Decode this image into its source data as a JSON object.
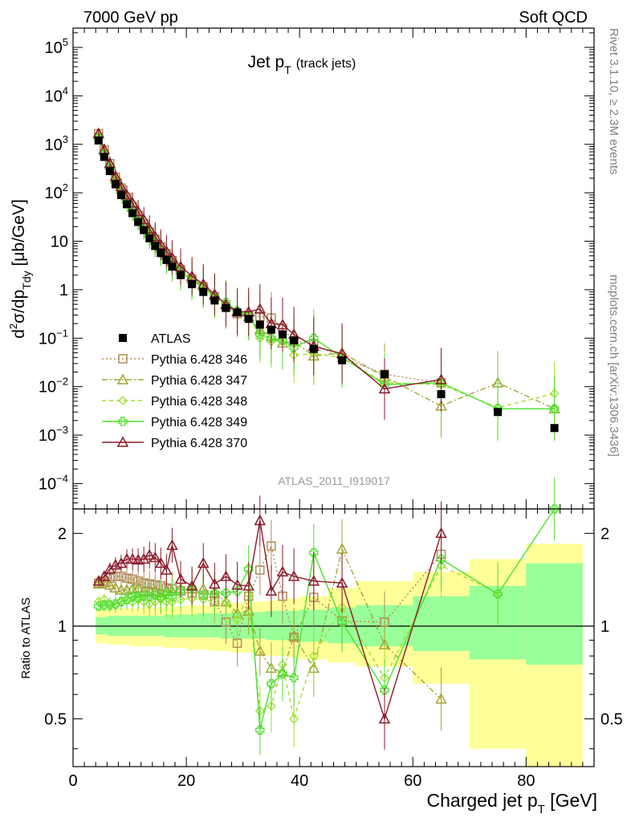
{
  "header": {
    "left": "7000 GeV pp",
    "right": "Soft QCD"
  },
  "side_labels": {
    "top": "Rivet 3.1.10, ≥ 2.3M events",
    "bottom": "mcplots.cern.ch [arXiv:1306.3436]"
  },
  "colors": {
    "ATLAS": "#000000",
    "346": "#b08b5a",
    "347": "#a4a536",
    "348": "#9ee02c",
    "349": "#4be02c",
    "370": "#8b1a2a",
    "band_yellow": "#ffff99",
    "band_green": "#99ff99"
  },
  "chart_data": [
    {
      "type": "scatter",
      "title": "Jet p_T (track jets)",
      "title_main": "Jet p",
      "title_sub": "T",
      "title_note": "(track jets)",
      "ylabel_parts": [
        "d",
        "2",
        "σ/dp",
        "Tdy",
        " [μb/GeV]"
      ],
      "yscale": "log",
      "ylim": [
        3e-05,
        250000.0
      ],
      "xlim": [
        0,
        92
      ],
      "ytick_labels": {
        "100000": [
          "10",
          "5"
        ],
        "10000": [
          "10",
          "4"
        ],
        "1000": [
          "10",
          "3"
        ],
        "100": [
          "10",
          "2"
        ],
        "10": [
          "10",
          ""
        ],
        "1": [
          "1",
          ""
        ],
        "0.1": [
          "10",
          "−1"
        ],
        "0.01": [
          "10",
          "−2"
        ],
        "0.001": [
          "10",
          "−3"
        ],
        "0.0001": [
          "10",
          "−4"
        ]
      },
      "watermark": "ATLAS_2011_I919017",
      "legend_position": "center-left",
      "series": [
        {
          "name": "ATLAS",
          "key": "ATLAS",
          "x": [
            4.5,
            5.5,
            6.5,
            7.5,
            8.5,
            9.5,
            10.5,
            11.5,
            12.5,
            13.5,
            14.5,
            15.5,
            16.5,
            17.5,
            19,
            21,
            23,
            25,
            27,
            29,
            31,
            33,
            35,
            37,
            39,
            42.5,
            47.5,
            55,
            65,
            75,
            85
          ],
          "y": [
            1200,
            550,
            280,
            150,
            90,
            58,
            38,
            25,
            17,
            11.5,
            8,
            5.7,
            4.1,
            3,
            2,
            1.3,
            0.9,
            0.6,
            0.42,
            0.34,
            0.25,
            0.19,
            0.15,
            0.12,
            0.09,
            0.06,
            0.035,
            0.018,
            0.007,
            0.003,
            0.0014
          ]
        },
        {
          "name": "Pythia 6.428 346",
          "key": "346",
          "style": "dotted",
          "marker": "square",
          "x": [
            4.5,
            5.5,
            6.5,
            7.5,
            8.5,
            9.5,
            10.5,
            11.5,
            12.5,
            13.5,
            14.5,
            15.5,
            16.5,
            17.5,
            19,
            21,
            23,
            25,
            27,
            29,
            31,
            33,
            35,
            37,
            39,
            42.5,
            47.5,
            55,
            65
          ],
          "y": [
            1660,
            770,
            400,
            210,
            125,
            80,
            52,
            34,
            23,
            15.5,
            11,
            7.6,
            5.5,
            4,
            2.6,
            1.65,
            1.15,
            0.72,
            0.45,
            0.32,
            0.3,
            0.28,
            0.26,
            0.16,
            0.085,
            0.075,
            0.04,
            0.018,
            0.012
          ]
        },
        {
          "name": "Pythia 6.428 347",
          "key": "347",
          "style": "dashdot",
          "marker": "triangle",
          "x": [
            4.5,
            5.5,
            6.5,
            7.5,
            8.5,
            9.5,
            10.5,
            11.5,
            12.5,
            13.5,
            14.5,
            15.5,
            16.5,
            17.5,
            19,
            21,
            23,
            25,
            27,
            29,
            31,
            33,
            35,
            37,
            39,
            42.5,
            47.5,
            55,
            65,
            75,
            85
          ],
          "y": [
            1640,
            760,
            380,
            200,
            118,
            76,
            50,
            33,
            22,
            15,
            10.5,
            7.3,
            5.3,
            3.9,
            2.6,
            1.7,
            1.2,
            0.76,
            0.5,
            0.37,
            0.28,
            0.15,
            0.11,
            0.08,
            0.085,
            0.043,
            0.05,
            0.016,
            0.004,
            0.012,
            0.0035
          ]
        },
        {
          "name": "Pythia 6.428 348",
          "key": "348",
          "style": "dashed",
          "marker": "diamond",
          "x": [
            4.5,
            5.5,
            6.5,
            7.5,
            8.5,
            9.5,
            10.5,
            11.5,
            12.5,
            13.5,
            14.5,
            15.5,
            16.5,
            17.5,
            19,
            21,
            23,
            25,
            27,
            29,
            31,
            33,
            35,
            37,
            39,
            42.5,
            47.5,
            55,
            65,
            75,
            85
          ],
          "y": [
            1440,
            660,
            330,
            175,
            105,
            68,
            45,
            30,
            20,
            13.5,
            9.5,
            6.6,
            4.8,
            3.5,
            2.4,
            1.6,
            1.1,
            0.7,
            0.5,
            0.36,
            0.32,
            0.1,
            0.085,
            0.09,
            0.045,
            0.048,
            0.04,
            0.012,
            0.011,
            0.0037,
            0.0072
          ]
        },
        {
          "name": "Pythia 6.428 349",
          "key": "349",
          "style": "solid",
          "marker": "cross",
          "x": [
            4.5,
            5.5,
            6.5,
            7.5,
            8.5,
            9.5,
            10.5,
            11.5,
            12.5,
            13.5,
            14.5,
            15.5,
            16.5,
            17.5,
            19,
            21,
            23,
            25,
            27,
            29,
            31,
            33,
            35,
            37,
            39,
            42.5,
            47.5,
            55,
            65,
            75,
            85
          ],
          "y": [
            1380,
            640,
            320,
            170,
            102,
            66,
            44,
            29,
            19.5,
            13,
            9.2,
            6.4,
            4.6,
            3.4,
            2.3,
            1.55,
            1.1,
            0.72,
            0.55,
            0.36,
            0.3,
            0.12,
            0.1,
            0.09,
            0.065,
            0.1,
            0.04,
            0.011,
            0.012,
            0.0035,
            0.0035
          ]
        },
        {
          "name": "Pythia 6.428 370",
          "key": "370",
          "style": "solid",
          "marker": "triangle",
          "x": [
            4.5,
            5.5,
            6.5,
            7.5,
            8.5,
            9.5,
            10.5,
            11.5,
            12.5,
            13.5,
            14.5,
            15.5,
            16.5,
            17.5,
            19,
            21,
            23,
            25,
            27,
            29,
            31,
            33,
            35,
            37,
            39,
            42.5,
            47.5,
            55,
            65
          ],
          "y": [
            1680,
            780,
            410,
            220,
            135,
            90,
            62,
            41,
            28,
            18,
            12.5,
            8.5,
            6.2,
            4.6,
            3,
            1.9,
            1.3,
            0.8,
            0.5,
            0.35,
            0.35,
            0.4,
            0.2,
            0.19,
            0.12,
            0.068,
            0.048,
            0.009,
            0.014
          ]
        }
      ]
    },
    {
      "type": "scatter",
      "ylabel": "Ratio to ATLAS",
      "xlabel_main": "Charged jet p",
      "xlabel_sub": "T",
      "xlabel_unit": " [GeV]",
      "yscale": "log",
      "ylim": [
        0.35,
        2.4
      ],
      "xlim": [
        0,
        92
      ],
      "xticks": [
        0,
        20,
        40,
        60,
        80
      ],
      "yticks": [
        0.5,
        1,
        2
      ],
      "reference_line": 1,
      "bands": {
        "x_edges": [
          4,
          6,
          8,
          10,
          12,
          14,
          16,
          18,
          20,
          22,
          24,
          26,
          28,
          30,
          32,
          34,
          36,
          38,
          40,
          45,
          50,
          60,
          70,
          80,
          90
        ],
        "yellow_low": [
          0.88,
          0.87,
          0.87,
          0.86,
          0.86,
          0.86,
          0.85,
          0.85,
          0.84,
          0.84,
          0.83,
          0.83,
          0.82,
          0.82,
          0.81,
          0.8,
          0.8,
          0.79,
          0.78,
          0.76,
          0.74,
          0.65,
          0.4,
          0.35
        ],
        "yellow_high": [
          1.13,
          1.14,
          1.14,
          1.14,
          1.15,
          1.15,
          1.16,
          1.16,
          1.17,
          1.17,
          1.18,
          1.18,
          1.19,
          1.2,
          1.2,
          1.21,
          1.22,
          1.23,
          1.25,
          1.33,
          1.4,
          1.5,
          1.65,
          1.85
        ],
        "green_low": [
          0.94,
          0.93,
          0.93,
          0.93,
          0.93,
          0.93,
          0.92,
          0.92,
          0.92,
          0.92,
          0.92,
          0.91,
          0.91,
          0.91,
          0.91,
          0.9,
          0.9,
          0.9,
          0.89,
          0.88,
          0.86,
          0.83,
          0.78,
          0.75
        ],
        "green_high": [
          1.07,
          1.08,
          1.08,
          1.08,
          1.08,
          1.08,
          1.09,
          1.09,
          1.09,
          1.1,
          1.1,
          1.1,
          1.11,
          1.11,
          1.11,
          1.12,
          1.12,
          1.12,
          1.13,
          1.15,
          1.17,
          1.25,
          1.35,
          1.6
        ]
      },
      "series": [
        {
          "name": "Pythia 6.428 346",
          "key": "346",
          "style": "dotted",
          "marker": "square",
          "x": [
            4.5,
            5.5,
            6.5,
            7.5,
            8.5,
            9.5,
            10.5,
            11.5,
            12.5,
            13.5,
            14.5,
            15.5,
            16.5,
            17.5,
            19,
            21,
            23,
            25,
            27,
            29,
            31,
            33,
            35,
            37,
            39,
            42.5,
            47.5,
            55,
            65
          ],
          "y": [
            1.38,
            1.4,
            1.43,
            1.45,
            1.45,
            1.43,
            1.42,
            1.4,
            1.38,
            1.37,
            1.36,
            1.35,
            1.33,
            1.32,
            1.3,
            1.28,
            1.26,
            1.2,
            1.03,
            0.88,
            1.25,
            1.52,
            1.82,
            1.25,
            0.92,
            1.24,
            1.04,
            1.03,
            1.71
          ]
        },
        {
          "name": "Pythia 6.428 347",
          "key": "347",
          "style": "dashdot",
          "marker": "triangle",
          "x": [
            4.5,
            5.5,
            6.5,
            7.5,
            8.5,
            9.5,
            10.5,
            11.5,
            12.5,
            13.5,
            14.5,
            15.5,
            16.5,
            17.5,
            19,
            21,
            23,
            25,
            27,
            29,
            31,
            33,
            35,
            37,
            39,
            42.5,
            47.5,
            55,
            65
          ],
          "y": [
            1.37,
            1.38,
            1.36,
            1.33,
            1.31,
            1.31,
            1.32,
            1.33,
            1.3,
            1.3,
            1.3,
            1.28,
            1.3,
            1.3,
            1.32,
            1.32,
            1.32,
            1.28,
            1.2,
            1.1,
            1.12,
            0.83,
            0.73,
            0.71,
            0.93,
            0.73,
            1.78,
            0.87,
            0.58
          ]
        },
        {
          "name": "Pythia 6.428 348",
          "key": "348",
          "style": "dashed",
          "marker": "diamond",
          "x": [
            4.5,
            5.5,
            6.5,
            7.5,
            8.5,
            9.5,
            10.5,
            11.5,
            12.5,
            13.5,
            14.5,
            15.5,
            16.5,
            17.5,
            19,
            21,
            23,
            25,
            27,
            29,
            31,
            33,
            35,
            37,
            39,
            42.5,
            47.5,
            55,
            65,
            75
          ],
          "y": [
            1.2,
            1.22,
            1.18,
            1.17,
            1.2,
            1.21,
            1.2,
            1.22,
            1.2,
            1.18,
            1.2,
            1.22,
            1.2,
            1.2,
            1.22,
            1.23,
            1.22,
            1.2,
            1.2,
            1.05,
            1.27,
            0.53,
            0.55,
            0.75,
            0.5,
            0.8,
            1.15,
            0.68,
            1.57,
            1.28
          ]
        },
        {
          "name": "Pythia 6.428 349",
          "key": "349",
          "style": "solid",
          "marker": "cross",
          "x": [
            4.5,
            5.5,
            6.5,
            7.5,
            8.5,
            9.5,
            10.5,
            11.5,
            12.5,
            13.5,
            14.5,
            15.5,
            16.5,
            17.5,
            19,
            21,
            23,
            25,
            27,
            29,
            31,
            33,
            35,
            37,
            39,
            42.5,
            47.5,
            55,
            65,
            75,
            85
          ],
          "y": [
            1.16,
            1.17,
            1.17,
            1.18,
            1.2,
            1.22,
            1.25,
            1.24,
            1.25,
            1.25,
            1.26,
            1.24,
            1.27,
            1.25,
            1.3,
            1.33,
            1.26,
            1.28,
            1.28,
            1.3,
            1.53,
            0.46,
            0.65,
            0.7,
            0.68,
            1.73,
            1.03,
            0.62,
            1.65,
            1.27,
            2.6
          ]
        },
        {
          "name": "Pythia 6.428 370",
          "key": "370",
          "style": "solid",
          "marker": "triangle",
          "x": [
            4.5,
            5.5,
            6.5,
            7.5,
            8.5,
            9.5,
            10.5,
            11.5,
            12.5,
            13.5,
            14.5,
            15.5,
            16.5,
            17.5,
            19,
            21,
            23,
            25,
            27,
            29,
            31,
            33,
            35,
            37,
            39,
            42.5,
            47.5,
            55,
            65
          ],
          "y": [
            1.4,
            1.45,
            1.53,
            1.58,
            1.6,
            1.65,
            1.65,
            1.64,
            1.65,
            1.7,
            1.67,
            1.6,
            1.52,
            1.83,
            1.42,
            1.35,
            1.6,
            1.37,
            1.45,
            1.36,
            1.35,
            2.2,
            1.3,
            1.5,
            1.45,
            1.4,
            1.38,
            0.5,
            2
          ]
        }
      ]
    }
  ]
}
